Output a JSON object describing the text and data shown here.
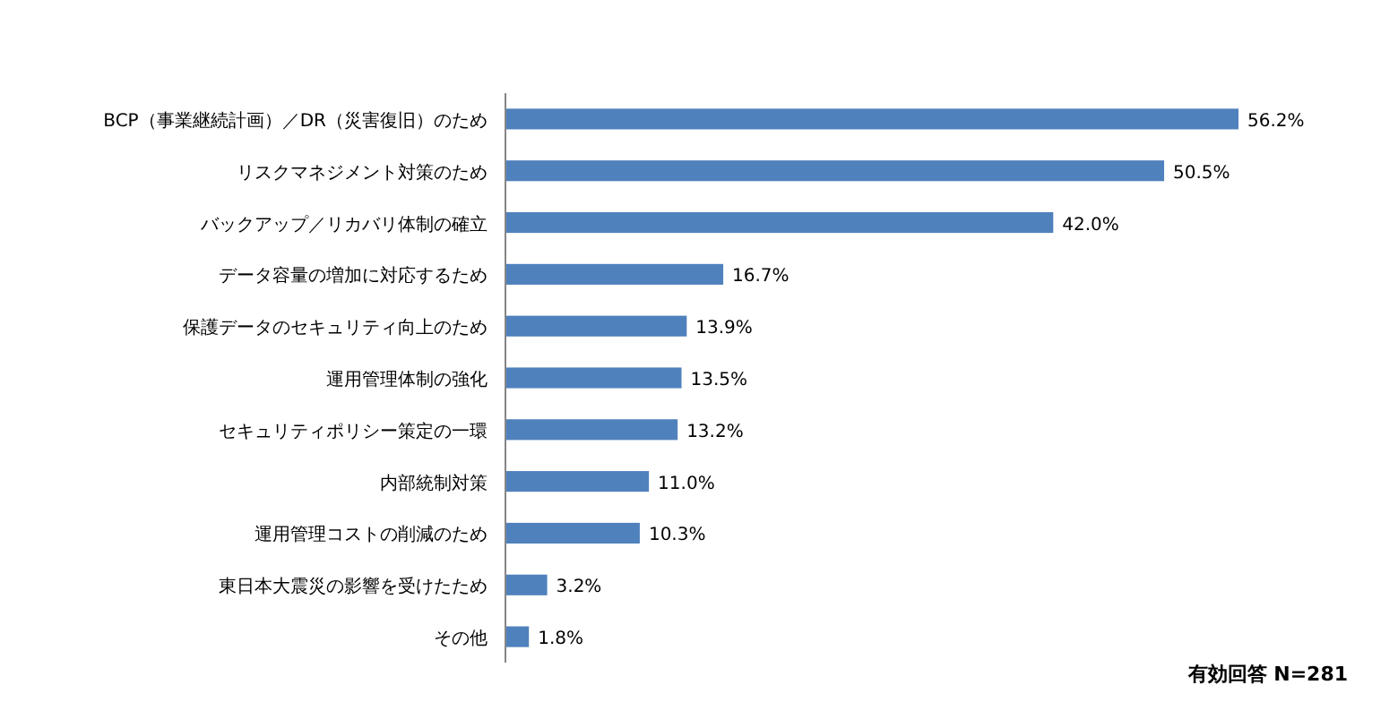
{
  "chart_data": {
    "type": "bar",
    "orientation": "horizontal",
    "categories": [
      "BCP（事業継続計画）／DR（災害復旧）のため",
      "リスクマネジメント対策のため",
      "バックアップ／リカバリ体制の確立",
      "データ容量の増加に対応するため",
      "保護データのセキュリティ向上のため",
      "運用管理体制の強化",
      "セキュリティポリシー策定の一環",
      "内部統制対策",
      "運用管理コストの削減のため",
      "東日本大震災の影響を受けたため",
      "その他"
    ],
    "values": [
      56.2,
      50.5,
      42.0,
      16.7,
      13.9,
      13.5,
      13.2,
      11.0,
      10.3,
      3.2,
      1.8
    ],
    "value_labels": [
      "56.2%",
      "50.5%",
      "42.0%",
      "16.7%",
      "13.9%",
      "13.5%",
      "13.2%",
      "11.0%",
      "10.3%",
      "3.2%",
      "1.8%"
    ],
    "color": "#4f81bd",
    "annotations": [
      "有効回答 N=281"
    ]
  }
}
